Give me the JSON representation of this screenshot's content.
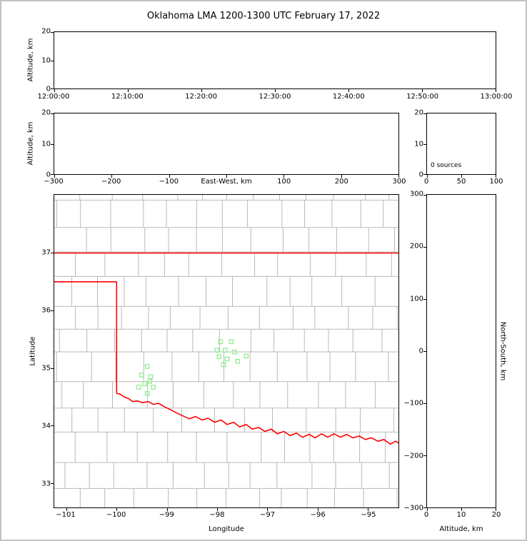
{
  "title": "Oklahoma LMA 1200-1300 UTC February 17, 2022",
  "colors": {
    "frame": "#c2c2c2",
    "axis": "#000000",
    "county": "#b9b9b9",
    "state_border": "#ff0000",
    "stations": "#90ee90"
  },
  "chart_data": [
    {
      "id": "time_height",
      "type": "scatter",
      "title": "",
      "xlabel": "",
      "ylabel": "Altitude, km",
      "xlim_labels": [
        "12:00:00",
        "13:00:00"
      ],
      "ylim": [
        0,
        20
      ],
      "x_ticks": [
        "12:00:00",
        "12:10:00",
        "12:20:00",
        "12:30:00",
        "12:40:00",
        "12:50:00",
        "13:00:00"
      ],
      "y_ticks": [
        "20",
        "10",
        "0"
      ],
      "points": []
    },
    {
      "id": "ew_height",
      "type": "scatter",
      "xlabel": "East-West, km",
      "ylabel": "Altitude, km",
      "xlim": [
        -300,
        300
      ],
      "ylim": [
        0,
        20
      ],
      "x_ticks": [
        "−300",
        "−200",
        "−100",
        "",
        "100",
        "200",
        "300"
      ],
      "y_ticks": [
        "20",
        "10",
        "0"
      ],
      "points": []
    },
    {
      "id": "alt_histogram",
      "type": "line",
      "xlabel": "",
      "ylabel": "",
      "xlim": [
        0,
        100
      ],
      "ylim": [
        0,
        20
      ],
      "x_ticks": [
        "0",
        "50",
        "100"
      ],
      "y_ticks": [
        "20",
        "10",
        "0"
      ],
      "annotation": "0 sources",
      "points": []
    },
    {
      "id": "plan_view",
      "type": "scatter",
      "xlabel": "Longitude",
      "ylabel": "Latitude",
      "xlim": [
        -101.24,
        -94.39
      ],
      "ylim": [
        32.58,
        38.01
      ],
      "x_ticks": [
        "−101",
        "−100",
        "−99",
        "−98",
        "−97",
        "−96",
        "−95"
      ],
      "y_ticks": [
        "37",
        "36",
        "35",
        "34",
        "33"
      ],
      "stations": [
        [
          -97.93,
          35.46
        ],
        [
          -97.72,
          35.46
        ],
        [
          -98.0,
          35.31
        ],
        [
          -97.84,
          35.31
        ],
        [
          -97.65,
          35.28
        ],
        [
          -97.96,
          35.2
        ],
        [
          -97.8,
          35.16
        ],
        [
          -97.42,
          35.21
        ],
        [
          -97.87,
          35.06
        ],
        [
          -97.59,
          35.12
        ],
        [
          -99.39,
          35.03
        ],
        [
          -99.5,
          34.88
        ],
        [
          -99.32,
          34.85
        ],
        [
          -99.44,
          34.73
        ],
        [
          -99.56,
          34.67
        ],
        [
          -99.27,
          34.67
        ],
        [
          -99.34,
          34.77
        ],
        [
          -99.39,
          34.56
        ]
      ],
      "state_border_segments": [
        [
          [
            -101.24,
            37.0
          ],
          [
            -94.39,
            37.0
          ]
        ],
        [
          [
            -101.24,
            36.5
          ],
          [
            -100.0,
            36.5
          ]
        ],
        [
          [
            -100.0,
            36.5
          ],
          [
            -100.0,
            34.56
          ]
        ]
      ],
      "red_river": [
        [
          -100.0,
          34.56
        ],
        [
          -99.93,
          34.55
        ],
        [
          -99.85,
          34.5
        ],
        [
          -99.76,
          34.47
        ],
        [
          -99.68,
          34.42
        ],
        [
          -99.58,
          34.43
        ],
        [
          -99.48,
          34.4
        ],
        [
          -99.37,
          34.42
        ],
        [
          -99.27,
          34.37
        ],
        [
          -99.17,
          34.39
        ],
        [
          -99.05,
          34.33
        ],
        [
          -98.93,
          34.28
        ],
        [
          -98.8,
          34.22
        ],
        [
          -98.68,
          34.17
        ],
        [
          -98.55,
          34.12
        ],
        [
          -98.43,
          34.16
        ],
        [
          -98.3,
          34.1
        ],
        [
          -98.18,
          34.13
        ],
        [
          -98.05,
          34.06
        ],
        [
          -97.92,
          34.1
        ],
        [
          -97.8,
          34.02
        ],
        [
          -97.67,
          34.06
        ],
        [
          -97.55,
          33.98
        ],
        [
          -97.42,
          34.02
        ],
        [
          -97.3,
          33.94
        ],
        [
          -97.17,
          33.97
        ],
        [
          -97.05,
          33.9
        ],
        [
          -96.92,
          33.94
        ],
        [
          -96.8,
          33.86
        ],
        [
          -96.67,
          33.9
        ],
        [
          -96.55,
          33.83
        ],
        [
          -96.42,
          33.87
        ],
        [
          -96.3,
          33.8
        ],
        [
          -96.17,
          33.85
        ],
        [
          -96.05,
          33.79
        ],
        [
          -95.92,
          33.86
        ],
        [
          -95.8,
          33.8
        ],
        [
          -95.67,
          33.86
        ],
        [
          -95.55,
          33.8
        ],
        [
          -95.42,
          33.85
        ],
        [
          -95.3,
          33.79
        ],
        [
          -95.17,
          33.82
        ],
        [
          -95.05,
          33.76
        ],
        [
          -94.93,
          33.79
        ],
        [
          -94.8,
          33.73
        ],
        [
          -94.68,
          33.76
        ],
        [
          -94.55,
          33.68
        ],
        [
          -94.45,
          33.73
        ],
        [
          -94.39,
          33.7
        ]
      ],
      "points": []
    },
    {
      "id": "ns_height",
      "type": "scatter",
      "xlabel": "Altitude, km",
      "ylabel": "North-South, km",
      "xlim": [
        0,
        20
      ],
      "ylim": [
        -300,
        300
      ],
      "x_ticks": [
        "0",
        "10",
        "20"
      ],
      "y_ticks": [
        "300",
        "200",
        "100",
        "0",
        "−100",
        "−200",
        "−300"
      ],
      "points": []
    }
  ]
}
